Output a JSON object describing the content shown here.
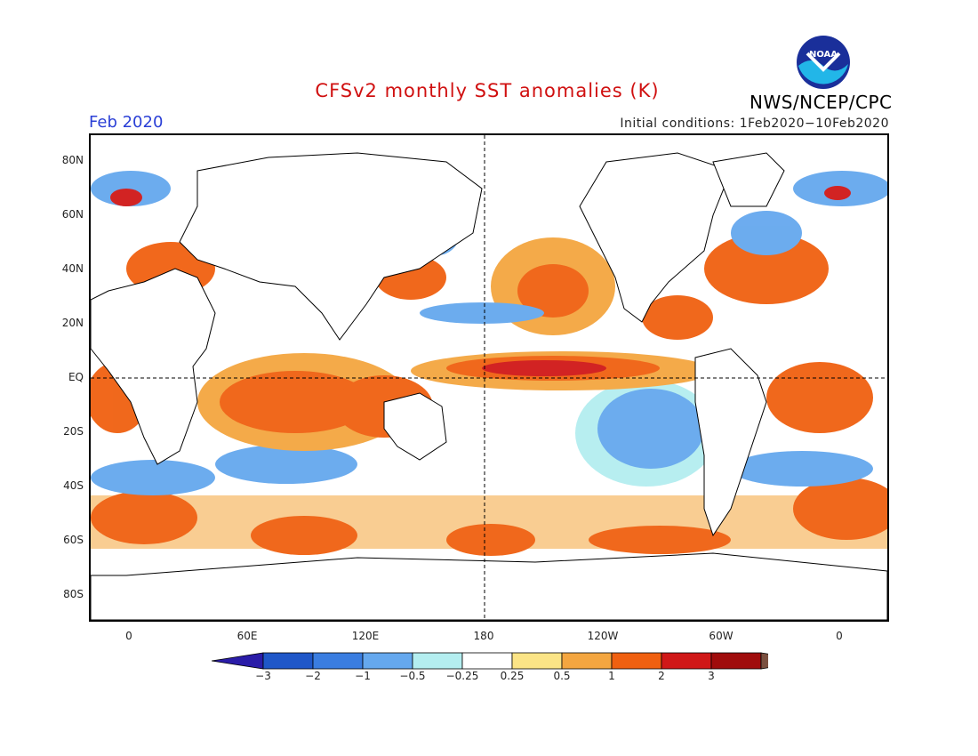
{
  "header": {
    "title": "CFSv2 monthly SST anomalies (K)",
    "period": "Feb 2020",
    "initial_conditions": "Initial conditions: 1Feb2020−10Feb2020",
    "agency": "NWS/NCEP/CPC",
    "logo_text": "NOAA"
  },
  "map": {
    "lat_labels": [
      "80N",
      "60N",
      "40N",
      "20N",
      "EQ",
      "20S",
      "40S",
      "60S",
      "80S"
    ],
    "lon_labels": [
      "0",
      "60E",
      "120E",
      "180",
      "120W",
      "60W",
      "0"
    ],
    "lat_range": [
      -90,
      90
    ],
    "lon_range": [
      -20,
      380
    ],
    "reference_lines": [
      "equator dashed",
      "180 meridian dashed"
    ]
  },
  "colorbar": {
    "labels": [
      "−3",
      "−2",
      "−1",
      "−0.5",
      "−0.25",
      "0.25",
      "0.5",
      "1",
      "2",
      "3"
    ],
    "colors": [
      "#2a1ca8",
      "#1f57c8",
      "#3a7de0",
      "#65a8ee",
      "#b4eef0",
      "#ffffff",
      "#fbe486",
      "#f4a640",
      "#f06010",
      "#d01818",
      "#a00c0c",
      "#7a5040"
    ]
  }
}
